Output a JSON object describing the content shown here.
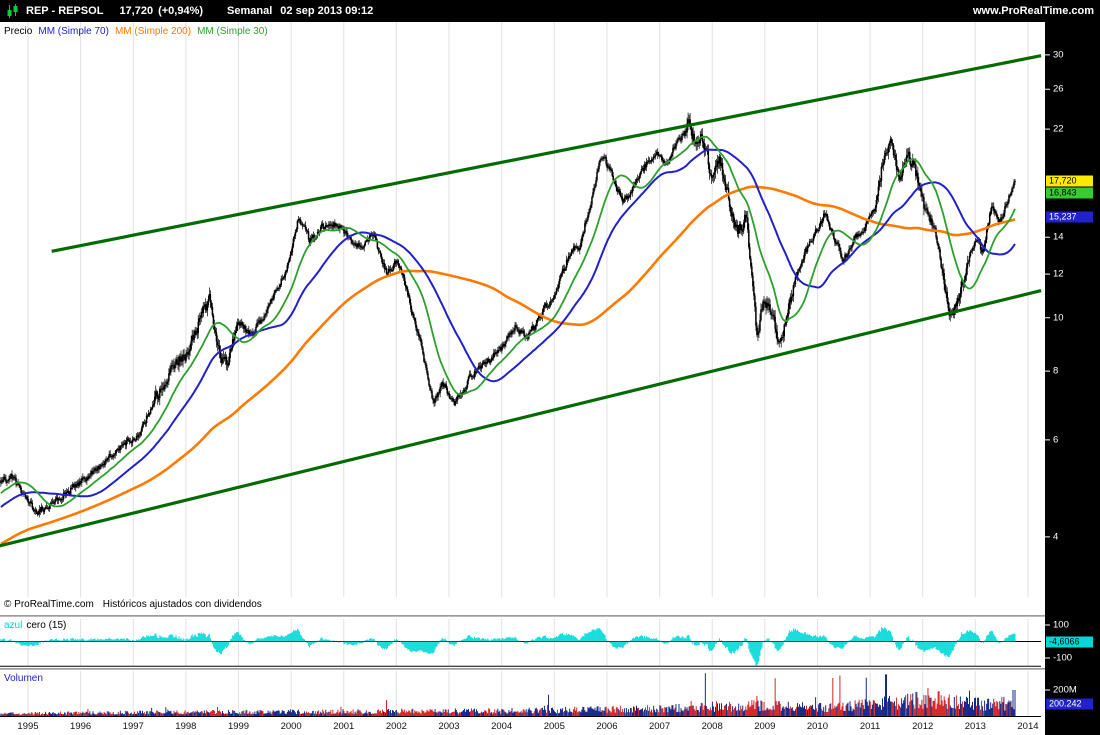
{
  "titlebar": {
    "symbol": "REP - REPSOL",
    "last_price": "17,720",
    "change": "(+0,94%)",
    "timeframe": "Semanal",
    "datetime": "02 sep 2013 09:12",
    "website": "www.ProRealTime.com"
  },
  "legend": {
    "price_label": "Precio",
    "ma70": "MM (Simple 70)",
    "ma200": "MM (Simple 200)",
    "ma30": "MM (Simple 30)"
  },
  "footer": {
    "copyright": "© ProRealTime.com",
    "note": "Históricos ajustados con dividendos"
  },
  "oscillator_pane": {
    "label_colored": "azul",
    "label_rest": "cero (15)",
    "value_box": "-4,6066",
    "box_bg": "#00d8d8",
    "box_fg": "#000000",
    "axis_labels": [
      "100",
      "-100"
    ]
  },
  "volume_pane_ui": {
    "label": "Volumen",
    "axis_label": "200M",
    "value_box": "200.242",
    "box_bg": "#2222cc",
    "box_fg": "#ffffff"
  },
  "price_axis": {
    "labels": [
      30,
      26,
      22,
      14,
      12,
      10,
      8,
      6,
      4
    ],
    "boxes": [
      {
        "text": "17,720",
        "value": 17.72,
        "bg": "#ffe800",
        "fg": "#000000"
      },
      {
        "text": "16,843",
        "value": 16.843,
        "bg": "#35cc35",
        "fg": "#000000"
      },
      {
        "text": "15,237",
        "value": 15.237,
        "bg": "#2222cc",
        "fg": "#ffffff"
      }
    ]
  },
  "x_axis_years": [
    1995,
    1996,
    1997,
    1998,
    1999,
    2000,
    2001,
    2002,
    2003,
    2004,
    2005,
    2006,
    2007,
    2008,
    2009,
    2010,
    2011,
    2012,
    2013,
    2014
  ],
  "colors": {
    "titlebar_bg": "#000000",
    "titlebar_text": "#ffffff",
    "logo_green": "#00d23c",
    "candle": "#000000",
    "ma30": "#2ca02c",
    "ma70": "#2121cc",
    "ma200": "#ff7a00",
    "channel": "#006b00",
    "oscillator": "#00d8d8",
    "volume_up": "#00127d",
    "volume_down": "#d01010",
    "volume_label": "#2121cc",
    "grid": "#e2e2e2",
    "separator": "#9b9b9b",
    "axis_bg": "#000000",
    "axis_text": "#ffffff"
  },
  "chart_data": {
    "type": "candlestick",
    "title": "REP - REPSOL",
    "timeframe": "weekly (Semanal)",
    "price_scale": "log",
    "x_domain_years": [
      1994.45,
      2013.77
    ],
    "last_close": 17.72,
    "visible_price_range": [
      3.1,
      34
    ],
    "moving_averages": [
      {
        "name": "MM (Simple 30)",
        "period": 30,
        "color_key": "ma30",
        "last_value": 16.843
      },
      {
        "name": "MM (Simple 70)",
        "period": 70,
        "color_key": "ma70",
        "last_value": 15.237
      },
      {
        "name": "MM (Simple 200)",
        "period": 200,
        "color_key": "ma200"
      }
    ],
    "trend_channel": {
      "upper": {
        "from": [
          1995.45,
          13.2
        ],
        "to": [
          2014.25,
          29.9
        ]
      },
      "lower": {
        "from": [
          1994.45,
          3.85
        ],
        "to": [
          2014.25,
          11.2
        ]
      }
    },
    "price_anchors": [
      [
        1990.3,
        3.0
      ],
      [
        1991.5,
        3.4
      ],
      [
        1992.5,
        3.7
      ],
      [
        1993.5,
        4.3
      ],
      [
        1994.45,
        5.0
      ],
      [
        1994.7,
        5.15
      ],
      [
        1994.9,
        4.75
      ],
      [
        1995.2,
        4.45
      ],
      [
        1995.5,
        4.65
      ],
      [
        1995.9,
        4.95
      ],
      [
        1996.3,
        5.3
      ],
      [
        1996.8,
        5.9
      ],
      [
        1997.1,
        6.1
      ],
      [
        1997.4,
        7.1
      ],
      [
        1997.75,
        8.3
      ],
      [
        1998.0,
        8.5
      ],
      [
        1998.2,
        9.6
      ],
      [
        1998.45,
        10.8
      ],
      [
        1998.65,
        8.6
      ],
      [
        1998.8,
        8.3
      ],
      [
        1999.0,
        9.8
      ],
      [
        1999.25,
        9.3
      ],
      [
        1999.5,
        10.2
      ],
      [
        1999.75,
        11.4
      ],
      [
        1999.95,
        12.6
      ],
      [
        2000.15,
        15.3
      ],
      [
        2000.35,
        13.8
      ],
      [
        2000.6,
        14.6
      ],
      [
        2000.85,
        14.9
      ],
      [
        2001.1,
        13.9
      ],
      [
        2001.35,
        13.4
      ],
      [
        2001.55,
        14.3
      ],
      [
        2001.8,
        12.1
      ],
      [
        2002.0,
        12.7
      ],
      [
        2002.2,
        11.1
      ],
      [
        2002.45,
        9.0
      ],
      [
        2002.7,
        7.0
      ],
      [
        2002.9,
        7.6
      ],
      [
        2003.1,
        6.95
      ],
      [
        2003.4,
        7.8
      ],
      [
        2003.7,
        8.3
      ],
      [
        2004.0,
        8.8
      ],
      [
        2004.25,
        9.6
      ],
      [
        2004.5,
        9.2
      ],
      [
        2004.8,
        10.3
      ],
      [
        2005.05,
        11.2
      ],
      [
        2005.3,
        13.2
      ],
      [
        2005.5,
        13.6
      ],
      [
        2005.7,
        16.5
      ],
      [
        2005.9,
        19.8
      ],
      [
        2006.05,
        18.5
      ],
      [
        2006.3,
        16.2
      ],
      [
        2006.55,
        17.5
      ],
      [
        2006.8,
        19.5
      ],
      [
        2006.95,
        19.9
      ],
      [
        2007.1,
        18.8
      ],
      [
        2007.3,
        20.5
      ],
      [
        2007.55,
        22.3
      ],
      [
        2007.7,
        20.5
      ],
      [
        2007.8,
        21.3
      ],
      [
        2008.0,
        18.0
      ],
      [
        2008.15,
        19.2
      ],
      [
        2008.35,
        16.0
      ],
      [
        2008.5,
        14.2
      ],
      [
        2008.65,
        15.2
      ],
      [
        2008.85,
        9.4
      ],
      [
        2009.0,
        10.9
      ],
      [
        2009.15,
        10.0
      ],
      [
        2009.3,
        8.9
      ],
      [
        2009.5,
        11.0
      ],
      [
        2009.7,
        12.8
      ],
      [
        2009.95,
        14.2
      ],
      [
        2010.15,
        15.5
      ],
      [
        2010.3,
        14.0
      ],
      [
        2010.5,
        12.7
      ],
      [
        2010.7,
        13.9
      ],
      [
        2010.9,
        14.6
      ],
      [
        2011.1,
        15.8
      ],
      [
        2011.25,
        19.5
      ],
      [
        2011.4,
        21.3
      ],
      [
        2011.55,
        17.6
      ],
      [
        2011.7,
        19.7
      ],
      [
        2011.85,
        18.9
      ],
      [
        2012.0,
        16.0
      ],
      [
        2012.15,
        15.0
      ],
      [
        2012.3,
        13.5
      ],
      [
        2012.5,
        10.4
      ],
      [
        2012.62,
        10.3
      ],
      [
        2012.8,
        12.2
      ],
      [
        2013.0,
        13.9
      ],
      [
        2013.15,
        13.2
      ],
      [
        2013.3,
        15.9
      ],
      [
        2013.45,
        14.8
      ],
      [
        2013.6,
        16.3
      ],
      [
        2013.72,
        17.3
      ],
      [
        2013.77,
        17.72
      ]
    ],
    "oscillator": {
      "name": "azul cero",
      "period": 15,
      "axis_range": [
        -100,
        100
      ],
      "last_value": -4.6066
    },
    "volume": {
      "unit": "millions",
      "axis_tick_value": 200,
      "last_value": 200.242,
      "base_anchors": [
        [
          1990.5,
          15
        ],
        [
          1994.5,
          18
        ],
        [
          1997.0,
          26
        ],
        [
          2000.0,
          32
        ],
        [
          2004.0,
          38
        ],
        [
          2007.0,
          55
        ],
        [
          2008.8,
          85
        ],
        [
          2010.0,
          60
        ],
        [
          2011.2,
          95
        ],
        [
          2012.0,
          115
        ],
        [
          2013.0,
          90
        ],
        [
          2013.77,
          95
        ]
      ],
      "spikes": [
        [
          1998.6,
          70
        ],
        [
          2007.6,
          115
        ],
        [
          2008.85,
          155
        ],
        [
          2010.05,
          100
        ],
        [
          2011.3,
          320
        ],
        [
          2011.72,
          170
        ],
        [
          2011.88,
          185
        ],
        [
          2012.1,
          215
        ],
        [
          2012.3,
          190
        ],
        [
          2012.5,
          165
        ],
        [
          2012.72,
          150
        ],
        [
          2013.05,
          140
        ],
        [
          2013.72,
          200.242
        ]
      ]
    }
  }
}
